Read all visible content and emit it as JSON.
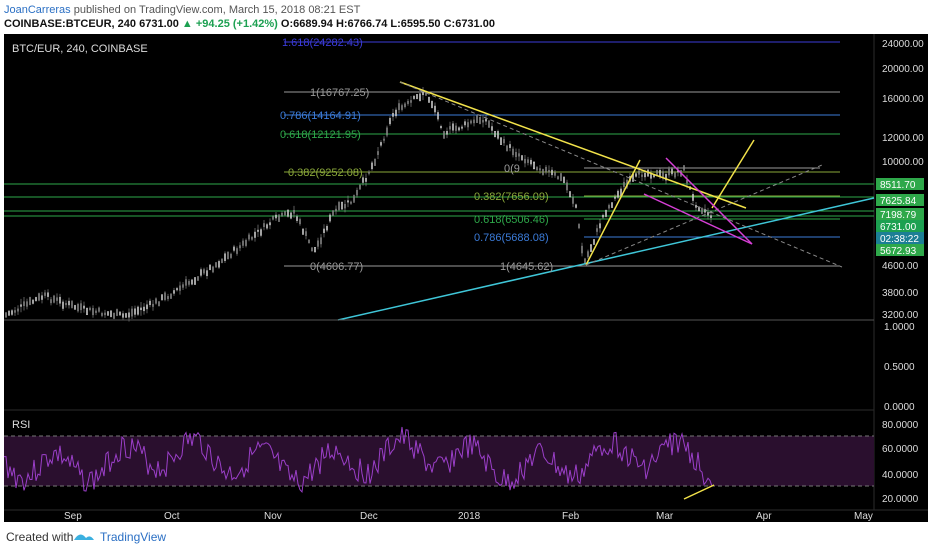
{
  "header": {
    "author": "JoanCarreras",
    "published_text": "published on TradingView.com, March 15, 2018 08:21 EST",
    "symbol": "COINBASE:BTCEUR, 240",
    "last": "6731.00",
    "change": "+94.25 (+1.42%)",
    "open": "O:6689.94",
    "high": "H:6766.74",
    "low": "L:6595.50",
    "close": "C:6731.00",
    "up_arrow": "▲"
  },
  "chart": {
    "pane_title": "BTC/EUR, 240, COINBASE",
    "rsi_title": "RSI",
    "price_axis": [
      "24000.00",
      "20000.00",
      "16000.00",
      "12000.00",
      "10000.00",
      "4600.00",
      "3800.00",
      "3200.00"
    ],
    "price_badges": [
      {
        "label": "8511.70",
        "color": "#2ea84a"
      },
      {
        "label": "7625.84",
        "color": "#2ea84a"
      },
      {
        "label": "7198.79",
        "color": "#2ea84a"
      },
      {
        "label": "6731.00",
        "color": "#1ca051"
      },
      {
        "label": "02:38:22",
        "color": "#1c7f95"
      },
      {
        "label": "5672.93",
        "color": "#2ea84a"
      }
    ],
    "volume_axis": [
      "1.0000",
      "0.5000",
      "0.0000"
    ],
    "rsi_axis": [
      "80.0000",
      "60.0000",
      "40.0000",
      "20.0000"
    ],
    "time_axis": [
      "Sep",
      "Oct",
      "Nov",
      "Dec",
      "2018",
      "Feb",
      "Mar",
      "Apr",
      "May"
    ],
    "fib_left": [
      "1.618(24282.43)",
      "1(16767.25)",
      "0.786(14164.91)",
      "0.618(12121.95)",
      "0.382(9252.08)",
      "0(4606.77)"
    ],
    "fib_right": [
      "0(9",
      "0.382(7656.09)",
      "0.618(6506.46)",
      "0.786(5688.08)",
      "1(4645.62)"
    ],
    "colors": {
      "background": "#000000",
      "candles": "#d8d8d8",
      "trend_yellow": "#f2e24a",
      "trend_cyan": "#3fc6d8",
      "wedge_magenta": "#d63fd6",
      "fib_green": "#2ea84a",
      "fib_blue": "#3b7bd8",
      "rsi_line": "#9b3fc9",
      "rsi_band": "#2a0f2e"
    }
  },
  "footer": {
    "created_with": "Created with",
    "brand": "TradingView"
  }
}
